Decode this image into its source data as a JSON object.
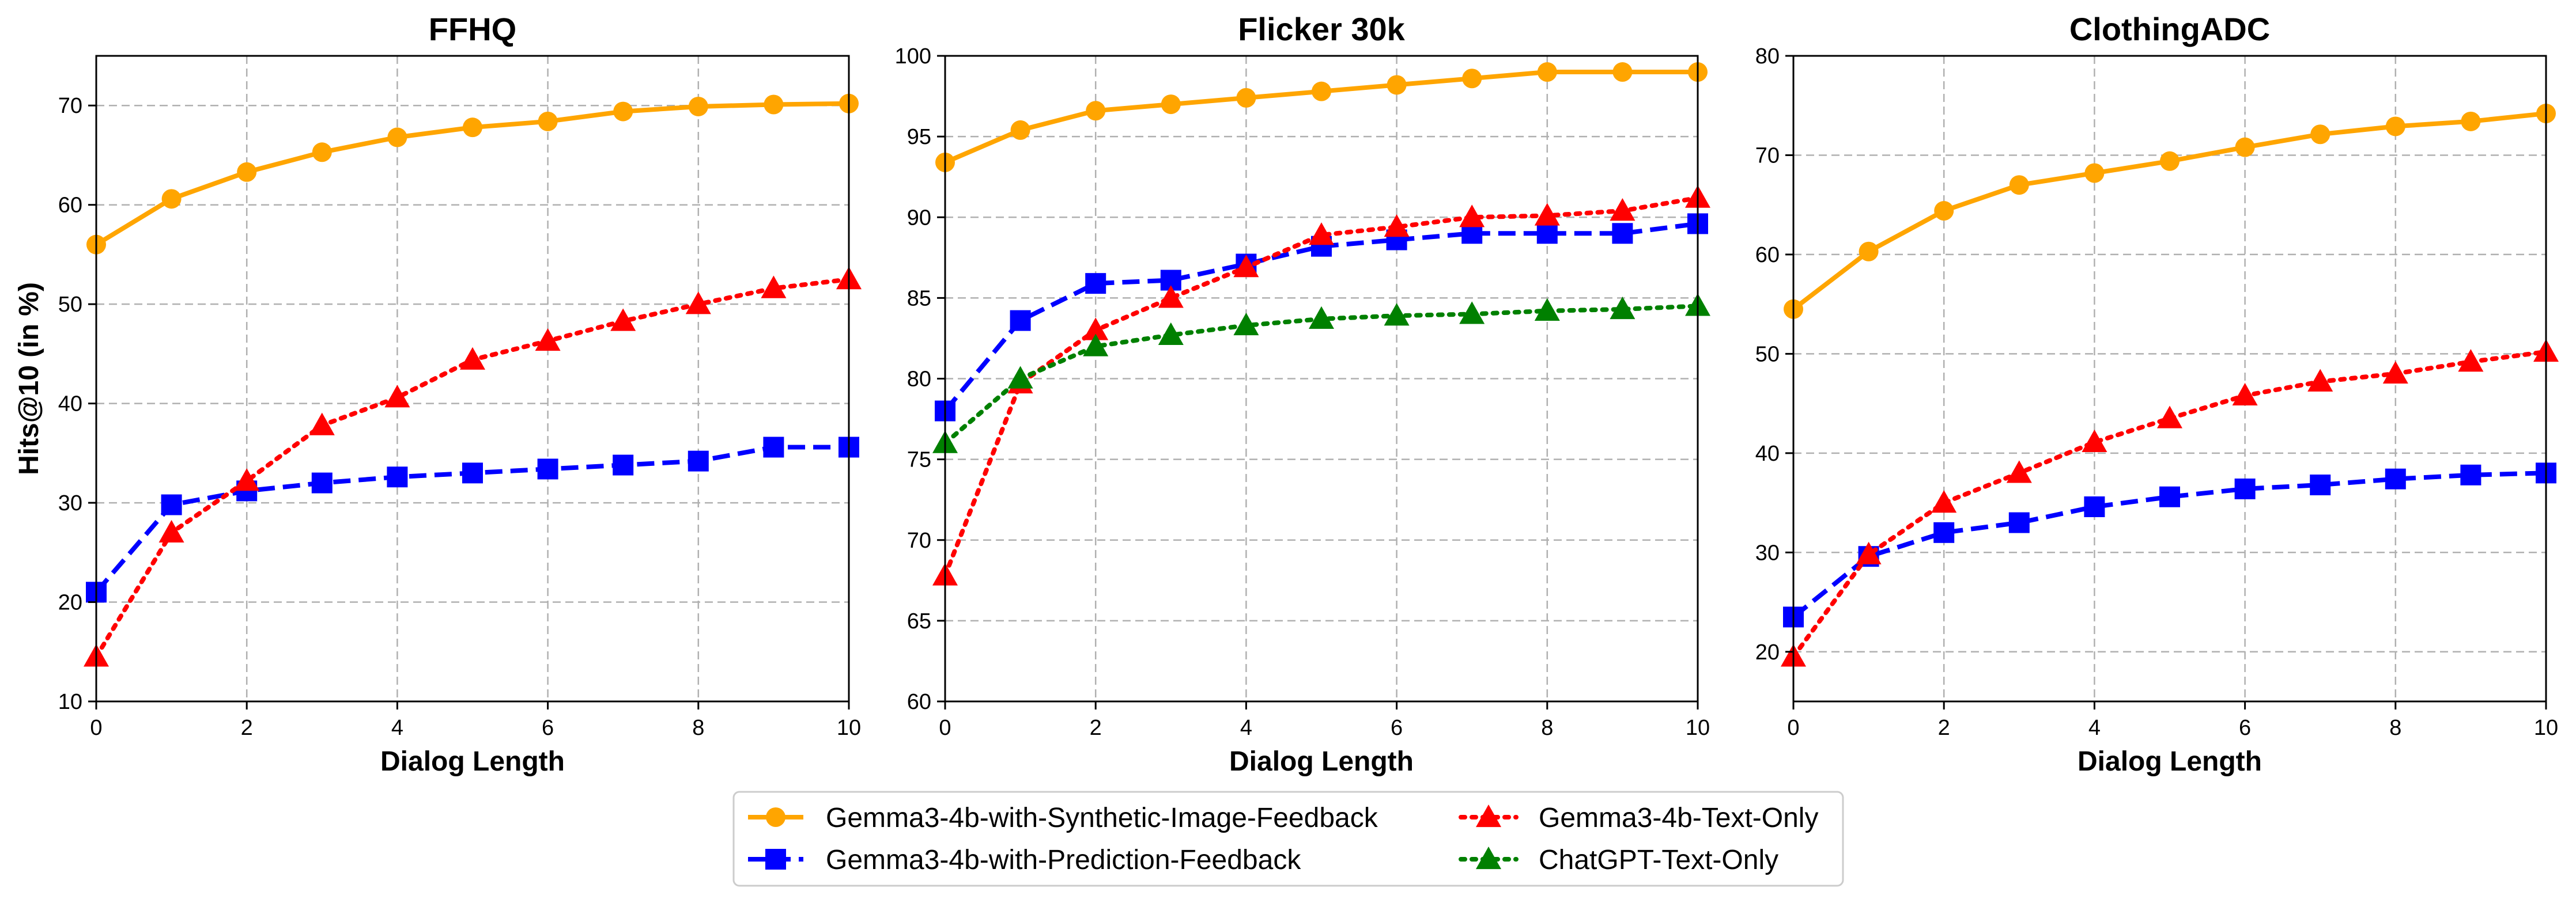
{
  "chart_data": [
    {
      "type": "line",
      "title": "FFHQ",
      "xlabel": "Dialog Length",
      "ylabel": "Hits@10 (in %)",
      "xlim": [
        0,
        10
      ],
      "ylim": [
        10,
        75
      ],
      "xticks": [
        0,
        2,
        4,
        6,
        8,
        10
      ],
      "yticks": [
        10,
        20,
        30,
        40,
        50,
        60,
        70
      ],
      "grid": true,
      "x": [
        0,
        1,
        2,
        3,
        4,
        5,
        6,
        7,
        8,
        9,
        10
      ],
      "series": [
        {
          "name": "Gemma3-4b-with-Synthetic-Image-Feedback",
          "values": [
            56,
            60.6,
            63.3,
            65.3,
            66.8,
            67.8,
            68.4,
            69.4,
            69.9,
            70.1,
            70.2
          ]
        },
        {
          "name": "Gemma3-4b-with-Prediction-Feedback",
          "values": [
            21,
            29.8,
            31.2,
            32,
            32.6,
            33,
            33.4,
            33.8,
            34.2,
            35.6,
            35.6
          ]
        },
        {
          "name": "Gemma3-4b-Text-Only",
          "values": [
            14.5,
            27,
            32.2,
            37.8,
            40.6,
            44.4,
            46.3,
            48.3,
            50,
            51.6,
            52.5
          ]
        }
      ]
    },
    {
      "type": "line",
      "title": "Flicker 30k",
      "xlabel": "Dialog Length",
      "ylabel": "",
      "xlim": [
        0,
        10
      ],
      "ylim": [
        60,
        100
      ],
      "xticks": [
        0,
        2,
        4,
        6,
        8,
        10
      ],
      "yticks": [
        60,
        65,
        70,
        75,
        80,
        85,
        90,
        95,
        100
      ],
      "grid": true,
      "x": [
        0,
        1,
        2,
        3,
        4,
        5,
        6,
        7,
        8,
        9,
        10
      ],
      "series": [
        {
          "name": "Gemma3-4b-with-Synthetic-Image-Feedback",
          "values": [
            93.4,
            95.4,
            96.6,
            97,
            97.4,
            97.8,
            98.2,
            98.6,
            99,
            99,
            99
          ]
        },
        {
          "name": "Gemma3-4b-with-Prediction-Feedback",
          "values": [
            78,
            83.6,
            85.9,
            86.1,
            87.1,
            88.2,
            88.6,
            89,
            89,
            89,
            89.6
          ]
        },
        {
          "name": "Gemma3-4b-Text-Only",
          "values": [
            67.8,
            79.7,
            83,
            85,
            86.9,
            88.9,
            89.4,
            90,
            90.1,
            90.4,
            91.2
          ]
        },
        {
          "name": "ChatGPT-Text-Only",
          "values": [
            76,
            80,
            82,
            82.7,
            83.3,
            83.7,
            83.9,
            84,
            84.2,
            84.3,
            84.5
          ]
        }
      ]
    },
    {
      "type": "line",
      "title": "ClothingADC",
      "xlabel": "Dialog Length",
      "ylabel": "",
      "xlim": [
        0,
        10
      ],
      "ylim": [
        15,
        80
      ],
      "xticks": [
        0,
        2,
        4,
        6,
        8,
        10
      ],
      "yticks": [
        20,
        30,
        40,
        50,
        60,
        70,
        80
      ],
      "grid": true,
      "x": [
        0,
        1,
        2,
        3,
        4,
        5,
        6,
        7,
        8,
        9,
        10
      ],
      "series": [
        {
          "name": "Gemma3-4b-with-Synthetic-Image-Feedback",
          "values": [
            54.5,
            60.3,
            64.4,
            67,
            68.2,
            69.4,
            70.8,
            72.1,
            72.9,
            73.4,
            74.2
          ]
        },
        {
          "name": "Gemma3-4b-with-Prediction-Feedback",
          "values": [
            23.5,
            29.6,
            32,
            33,
            34.6,
            35.6,
            36.4,
            36.8,
            37.4,
            37.8,
            38
          ]
        },
        {
          "name": "Gemma3-4b-Text-Only",
          "values": [
            19.5,
            29.8,
            35,
            38,
            41.1,
            43.5,
            45.8,
            47.2,
            48,
            49.2,
            50.2
          ]
        }
      ]
    }
  ],
  "legend": {
    "position": "bottom-center",
    "entries": [
      {
        "name": "Gemma3-4b-with-Synthetic-Image-Feedback"
      },
      {
        "name": "Gemma3-4b-with-Prediction-Feedback"
      },
      {
        "name": "Gemma3-4b-Text-Only"
      },
      {
        "name": "ChatGPT-Text-Only"
      }
    ]
  },
  "styles": {
    "Gemma3-4b-with-Synthetic-Image-Feedback": {
      "color": "#ffa500",
      "marker": "circle",
      "dash": "solid"
    },
    "Gemma3-4b-with-Prediction-Feedback": {
      "color": "#0000ff",
      "marker": "square",
      "dash": "dashed"
    },
    "Gemma3-4b-Text-Only": {
      "color": "#ff0000",
      "marker": "triangle",
      "dash": "dotted"
    },
    "ChatGPT-Text-Only": {
      "color": "#008000",
      "marker": "triangle",
      "dash": "dotted"
    }
  }
}
